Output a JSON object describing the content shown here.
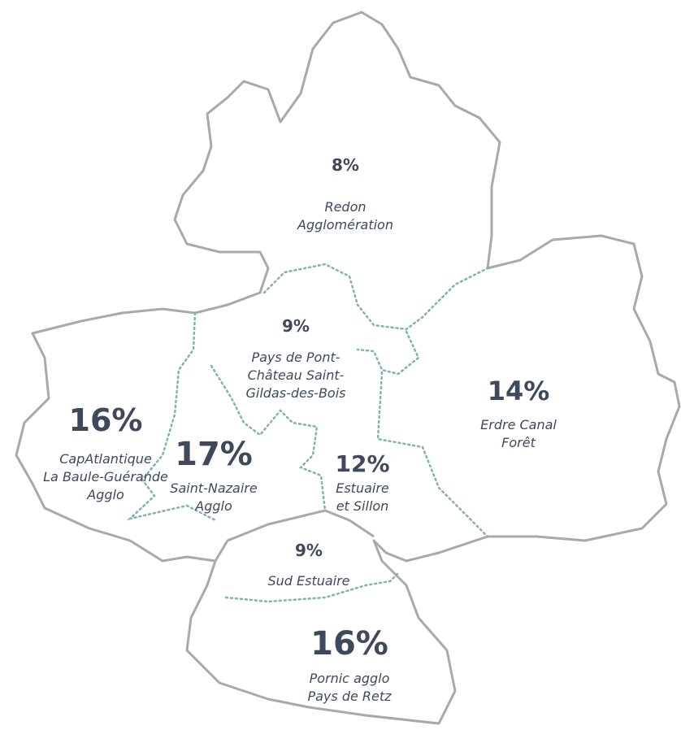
{
  "regions": [
    {
      "share": "8%",
      "name": [
        "Redon",
        "Agglomération"
      ]
    },
    {
      "share": "9%",
      "name": [
        "Pays de Pont-",
        "Château Saint-",
        "Gildas-des-Bois"
      ]
    },
    {
      "share": "14%",
      "name": [
        "Erdre Canal",
        "Forêt"
      ]
    },
    {
      "share": "16%",
      "name": [
        "CapAtlantique",
        "La Baule-Guérande",
        "Agglo"
      ]
    },
    {
      "share": "17%",
      "name": [
        "Saint-Nazaire",
        "Agglo"
      ]
    },
    {
      "share": "12%",
      "name": [
        "Estuaire",
        "et Sillon"
      ]
    },
    {
      "share": "9%",
      "name": [
        "Sud Estuaire"
      ]
    },
    {
      "share": "16%",
      "name": [
        "Pornic agglo",
        "Pays de Retz"
      ]
    }
  ]
}
